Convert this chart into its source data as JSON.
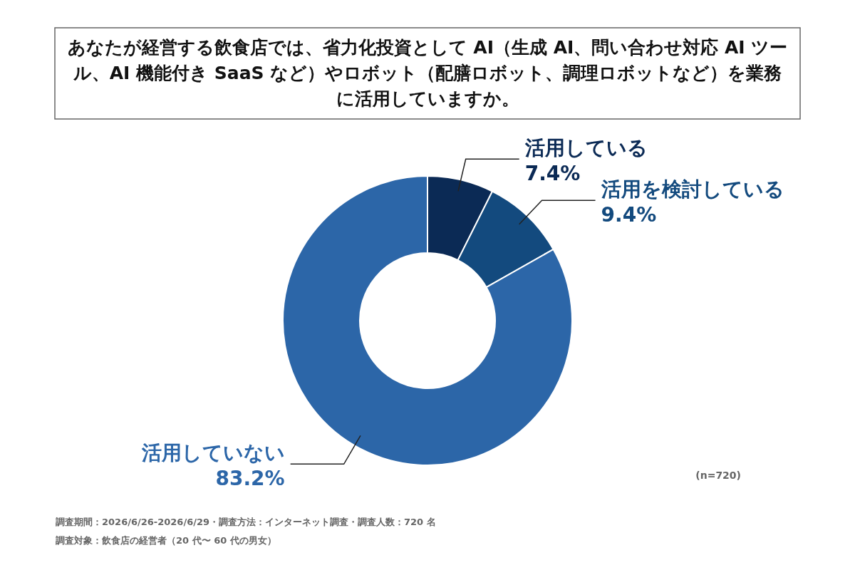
{
  "chart_data": {
    "type": "donut",
    "title": "あなたが経営する飲食店では、省力化投資として AI（生成 AI、問い合わせ対応 AI ツール、AI 機能付き SaaS など）やロボット（配膳ロボット、調理ロボットなど）を業務に活用していますか。",
    "categories": [
      "活用している",
      "活用を検討している",
      "活用していない"
    ],
    "values": [
      7.4,
      9.4,
      83.2
    ],
    "value_labels": [
      "7.4%",
      "9.4%",
      "83.2%"
    ],
    "colors": [
      "#0b2a55",
      "#134a7e",
      "#2c66a8"
    ],
    "annotations": [
      "(n=720)",
      "調査期間：2026/6/26-2026/6/29・調査方法：インターネット調査・調査人数：720 名",
      "調査対象：飲食店の経営者（20 代〜 60 代の男女）"
    ]
  }
}
